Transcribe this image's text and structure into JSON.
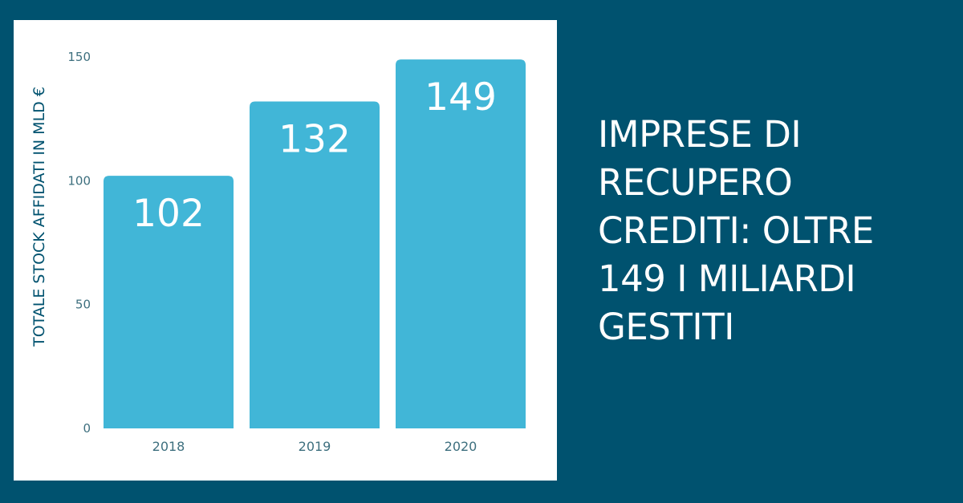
{
  "headline": "IMPRESE DI RECUPERO CREDITI: OLTRE 149 I MILIARDI GESTITI",
  "colors": {
    "background": "#00526f",
    "card": "#ffffff",
    "bar": "#41b6d7",
    "axis_text": "#3d6f7e",
    "ylabel": "#00526f"
  },
  "chart_data": {
    "type": "bar",
    "categories": [
      "2018",
      "2019",
      "2020"
    ],
    "values": [
      102,
      132,
      149
    ],
    "data_labels": [
      "102",
      "132",
      "149"
    ],
    "title": "",
    "xlabel": "",
    "ylabel": "TOTALE STOCK AFFIDATI IN MLD €",
    "ylim": [
      0,
      150
    ],
    "yticks": [
      0,
      50,
      100,
      150
    ],
    "grid": false,
    "legend": "none"
  }
}
